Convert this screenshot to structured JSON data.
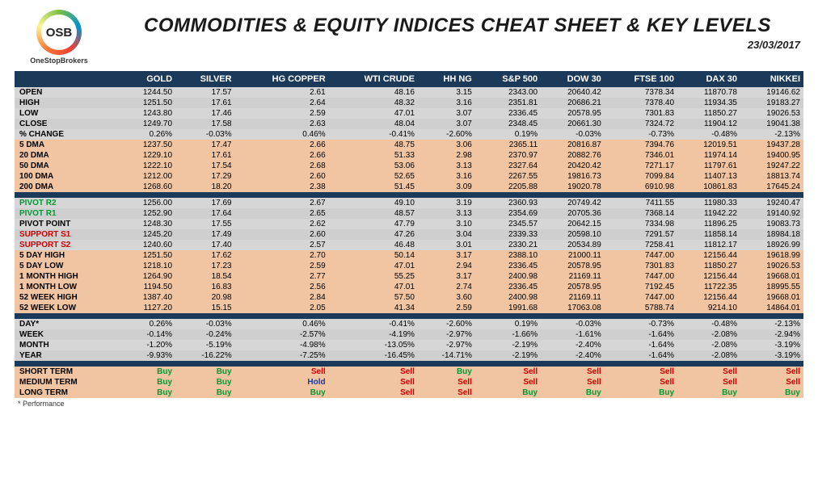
{
  "logo": {
    "initials": "OSB",
    "brand": "OneStopBrokers"
  },
  "title": "COMMODITIES & EQUITY INDICES CHEAT SHEET & KEY LEVELS",
  "date": "23/03/2017",
  "footnote": "* Performance",
  "columns": [
    "",
    "GOLD",
    "SILVER",
    "HG COPPER",
    "WTI CRUDE",
    "HH NG",
    "S&P 500",
    "DOW 30",
    "FTSE 100",
    "DAX 30",
    "NIKKEI"
  ],
  "colors": {
    "header_bg": "#1b3a5a",
    "peach": "#f2c5a2",
    "lightgray": "#d6d6d6",
    "midgray": "#cfcfcf"
  },
  "groups": [
    {
      "bg_pattern": [
        "#d6d6d6",
        "#cfcfcf",
        "#d6d6d6",
        "#cfcfcf",
        "#d6d6d6"
      ],
      "rows": [
        {
          "label": "OPEN",
          "cells": [
            "1244.50",
            "17.57",
            "2.61",
            "48.16",
            "3.15",
            "2343.00",
            "20640.42",
            "7378.34",
            "11870.78",
            "19146.62"
          ]
        },
        {
          "label": "HIGH",
          "cells": [
            "1251.50",
            "17.61",
            "2.64",
            "48.32",
            "3.16",
            "2351.81",
            "20686.21",
            "7378.40",
            "11934.35",
            "19183.27"
          ]
        },
        {
          "label": "LOW",
          "cells": [
            "1243.80",
            "17.46",
            "2.59",
            "47.01",
            "3.07",
            "2336.45",
            "20578.95",
            "7301.83",
            "11850.27",
            "19026.53"
          ]
        },
        {
          "label": "CLOSE",
          "cells": [
            "1249.70",
            "17.58",
            "2.63",
            "48.04",
            "3.07",
            "2348.45",
            "20661.30",
            "7324.72",
            "11904.12",
            "19041.38"
          ]
        },
        {
          "label": "% CHANGE",
          "cells": [
            "0.26%",
            "-0.03%",
            "0.46%",
            "-0.41%",
            "-2.60%",
            "0.19%",
            "-0.03%",
            "-0.73%",
            "-0.48%",
            "-2.13%"
          ]
        }
      ]
    },
    {
      "bg_pattern": [
        "#f2c5a2",
        "#f2c5a2",
        "#f2c5a2",
        "#f2c5a2",
        "#f2c5a2"
      ],
      "rows": [
        {
          "label": "5 DMA",
          "cells": [
            "1237.50",
            "17.47",
            "2.66",
            "48.75",
            "3.06",
            "2365.11",
            "20816.87",
            "7394.76",
            "12019.51",
            "19437.28"
          ]
        },
        {
          "label": "20 DMA",
          "cells": [
            "1229.10",
            "17.61",
            "2.66",
            "51.33",
            "2.98",
            "2370.97",
            "20882.76",
            "7346.01",
            "11974.14",
            "19400.95"
          ]
        },
        {
          "label": "50 DMA",
          "cells": [
            "1222.10",
            "17.54",
            "2.68",
            "53.06",
            "3.13",
            "2327.64",
            "20420.42",
            "7271.17",
            "11797.61",
            "19247.22"
          ]
        },
        {
          "label": "100 DMA",
          "cells": [
            "1212.00",
            "17.29",
            "2.60",
            "52.65",
            "3.16",
            "2267.55",
            "19816.73",
            "7099.84",
            "11407.13",
            "18813.74"
          ]
        },
        {
          "label": "200 DMA",
          "cells": [
            "1268.60",
            "18.20",
            "2.38",
            "51.45",
            "3.09",
            "2205.88",
            "19020.78",
            "6910.98",
            "10861.83",
            "17645.24"
          ]
        }
      ]
    },
    {
      "bg_pattern": [
        "#d6d6d6",
        "#cfcfcf",
        "#d6d6d6",
        "#cfcfcf",
        "#d6d6d6"
      ],
      "rows": [
        {
          "label": "PIVOT R2",
          "label_class": "pivot-r",
          "cells": [
            "1256.00",
            "17.69",
            "2.67",
            "49.10",
            "3.19",
            "2360.93",
            "20749.42",
            "7411.55",
            "11980.33",
            "19240.47"
          ]
        },
        {
          "label": "PIVOT R1",
          "label_class": "pivot-r",
          "cells": [
            "1252.90",
            "17.64",
            "2.65",
            "48.57",
            "3.13",
            "2354.69",
            "20705.36",
            "7368.14",
            "11942.22",
            "19140.92"
          ]
        },
        {
          "label": "PIVOT POINT",
          "cells": [
            "1248.30",
            "17.55",
            "2.62",
            "47.79",
            "3.10",
            "2345.57",
            "20642.15",
            "7334.98",
            "11896.25",
            "19083.73"
          ]
        },
        {
          "label": "SUPPORT S1",
          "label_class": "pivot-s",
          "cells": [
            "1245.20",
            "17.49",
            "2.60",
            "47.26",
            "3.04",
            "2339.33",
            "20598.10",
            "7291.57",
            "11858.14",
            "18984.18"
          ]
        },
        {
          "label": "SUPPORT S2",
          "label_class": "pivot-s",
          "cells": [
            "1240.60",
            "17.40",
            "2.57",
            "46.48",
            "3.01",
            "2330.21",
            "20534.89",
            "7258.41",
            "11812.17",
            "18926.99"
          ]
        }
      ]
    },
    {
      "bg_pattern": [
        "#f2c5a2",
        "#f2c5a2",
        "#f2c5a2",
        "#f2c5a2",
        "#f2c5a2",
        "#f2c5a2"
      ],
      "rows": [
        {
          "label": "5 DAY HIGH",
          "cells": [
            "1251.50",
            "17.62",
            "2.70",
            "50.14",
            "3.17",
            "2388.10",
            "21000.11",
            "7447.00",
            "12156.44",
            "19618.99"
          ]
        },
        {
          "label": "5 DAY LOW",
          "cells": [
            "1218.10",
            "17.23",
            "2.59",
            "47.01",
            "2.94",
            "2336.45",
            "20578.95",
            "7301.83",
            "11850.27",
            "19026.53"
          ]
        },
        {
          "label": "1 MONTH HIGH",
          "cells": [
            "1264.90",
            "18.54",
            "2.77",
            "55.25",
            "3.17",
            "2400.98",
            "21169.11",
            "7447.00",
            "12156.44",
            "19668.01"
          ]
        },
        {
          "label": "1 MONTH LOW",
          "cells": [
            "1194.50",
            "16.83",
            "2.56",
            "47.01",
            "2.74",
            "2336.45",
            "20578.95",
            "7192.45",
            "11722.35",
            "18995.55"
          ]
        },
        {
          "label": "52 WEEK HIGH",
          "cells": [
            "1387.40",
            "20.98",
            "2.84",
            "57.50",
            "3.60",
            "2400.98",
            "21169.11",
            "7447.00",
            "12156.44",
            "19668.01"
          ]
        },
        {
          "label": "52 WEEK LOW",
          "cells": [
            "1127.20",
            "15.15",
            "2.05",
            "41.34",
            "2.59",
            "1991.68",
            "17063.08",
            "5788.74",
            "9214.10",
            "14864.01"
          ]
        }
      ]
    },
    {
      "bg_pattern": [
        "#d6d6d6",
        "#cfcfcf",
        "#d6d6d6",
        "#cfcfcf"
      ],
      "rows": [
        {
          "label": "DAY*",
          "cells": [
            "0.26%",
            "-0.03%",
            "0.46%",
            "-0.41%",
            "-2.60%",
            "0.19%",
            "-0.03%",
            "-0.73%",
            "-0.48%",
            "-2.13%"
          ]
        },
        {
          "label": "WEEK",
          "cells": [
            "-0.14%",
            "-0.24%",
            "-2.57%",
            "-4.19%",
            "-2.97%",
            "-1.66%",
            "-1.61%",
            "-1.64%",
            "-2.08%",
            "-2.94%"
          ]
        },
        {
          "label": "MONTH",
          "cells": [
            "-1.20%",
            "-5.19%",
            "-4.98%",
            "-13.05%",
            "-2.97%",
            "-2.19%",
            "-2.40%",
            "-1.64%",
            "-2.08%",
            "-3.19%"
          ]
        },
        {
          "label": "YEAR",
          "cells": [
            "-9.93%",
            "-16.22%",
            "-7.25%",
            "-16.45%",
            "-14.71%",
            "-2.19%",
            "-2.40%",
            "-1.64%",
            "-2.08%",
            "-3.19%"
          ]
        }
      ]
    },
    {
      "bg_pattern": [
        "#f2c5a2",
        "#f2c5a2",
        "#f2c5a2"
      ],
      "rows": [
        {
          "label": "SHORT TERM",
          "signal": true,
          "cells": [
            "Buy",
            "Buy",
            "Sell",
            "Sell",
            "Buy",
            "Sell",
            "Sell",
            "Sell",
            "Sell",
            "Sell"
          ]
        },
        {
          "label": "MEDIUM TERM",
          "signal": true,
          "cells": [
            "Buy",
            "Buy",
            "Hold",
            "Sell",
            "Sell",
            "Sell",
            "Sell",
            "Sell",
            "Sell",
            "Sell"
          ]
        },
        {
          "label": "LONG TERM",
          "signal": true,
          "cells": [
            "Buy",
            "Buy",
            "Buy",
            "Sell",
            "Sell",
            "Buy",
            "Buy",
            "Buy",
            "Buy",
            "Buy"
          ]
        }
      ]
    }
  ]
}
